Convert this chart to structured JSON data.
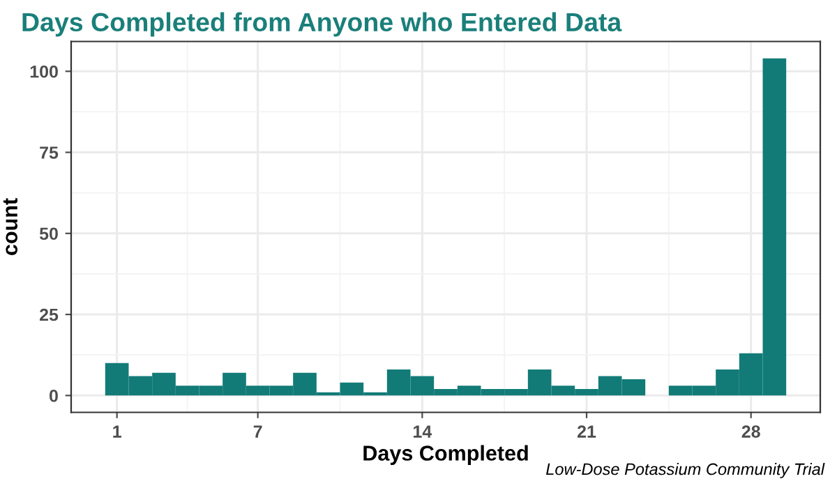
{
  "chart_data": {
    "type": "histogram",
    "title": "Days Completed from Anyone who Entered Data",
    "xlabel": "Days Completed",
    "ylabel": "count",
    "annotations": [
      "Low-Dose Potassium Community Trial"
    ],
    "bins": [
      0.5,
      1.5,
      2.5,
      3.5,
      4.5,
      5.5,
      6.5,
      7.5,
      8.5,
      9.5,
      10.5,
      11.5,
      12.5,
      13.5,
      14.5,
      15.5,
      16.5,
      17.5,
      18.5,
      19.5,
      20.5,
      21.5,
      22.5,
      23.5,
      24.5,
      25.5,
      26.5,
      27.5,
      28.5,
      29.5
    ],
    "values": [
      10,
      6,
      7,
      3,
      3,
      7,
      3,
      3,
      7,
      1,
      4,
      1,
      8,
      6,
      2,
      3,
      2,
      2,
      8,
      3,
      2,
      6,
      5,
      0,
      3,
      3,
      8,
      13,
      104
    ],
    "color": "#127b77",
    "xlim": [
      -0.95,
      30.95
    ],
    "xticks": [
      1,
      7,
      14,
      21,
      28
    ],
    "ylim": [
      -5.2,
      109.2
    ],
    "yticks": [
      0,
      25,
      50,
      75,
      100
    ],
    "grid": true
  }
}
